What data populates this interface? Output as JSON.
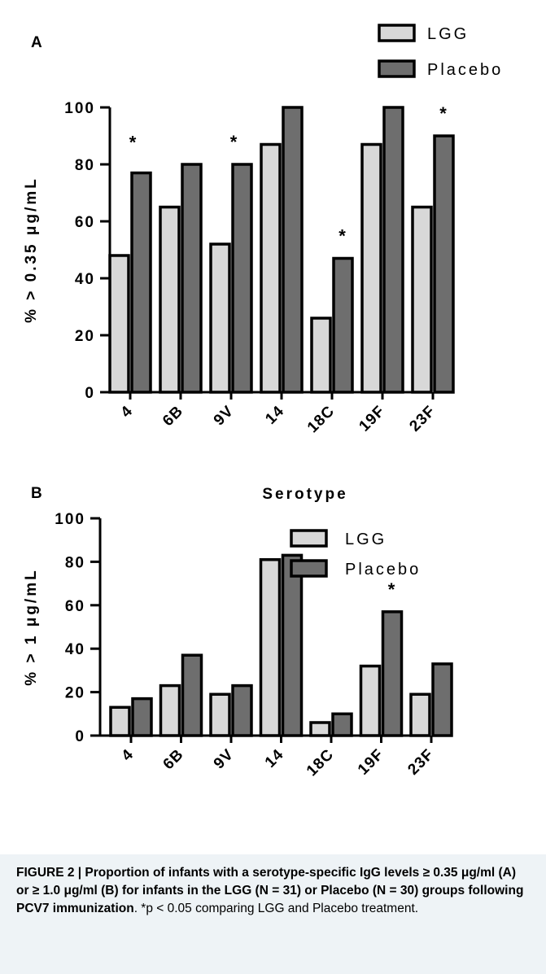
{
  "chart_data": [
    {
      "type": "bar",
      "panel_label": "A",
      "ylabel": "% > 0.35 μg/mL",
      "xlabel": "Serotype",
      "ylim": [
        0,
        100
      ],
      "yticks": [
        0,
        20,
        40,
        60,
        80,
        100
      ],
      "legend_position": "top-right",
      "categories": [
        "4",
        "6B",
        "9V",
        "14",
        "18C",
        "19F",
        "23F"
      ],
      "series": [
        {
          "name": "LGG",
          "color": "#d8d8d8",
          "values": [
            48,
            65,
            52,
            87,
            26,
            87,
            65
          ]
        },
        {
          "name": "Placebo",
          "color": "#6e6e6e",
          "values": [
            77,
            80,
            80,
            100,
            47,
            100,
            90
          ]
        }
      ],
      "significance": [
        "*",
        "",
        "*",
        "",
        "*",
        "",
        "*"
      ]
    },
    {
      "type": "bar",
      "panel_label": "B",
      "ylabel": "% > 1 μg/mL",
      "ylim": [
        0,
        100
      ],
      "yticks": [
        0,
        20,
        40,
        60,
        80,
        100
      ],
      "legend_position": "top-right",
      "categories": [
        "4",
        "6B",
        "9V",
        "14",
        "18C",
        "19F",
        "23F"
      ],
      "series": [
        {
          "name": "LGG",
          "color": "#d8d8d8",
          "values": [
            13,
            23,
            19,
            81,
            6,
            32,
            19
          ]
        },
        {
          "name": "Placebo",
          "color": "#6e6e6e",
          "values": [
            17,
            37,
            23,
            83,
            10,
            57,
            33
          ]
        }
      ],
      "significance": [
        "",
        "",
        "",
        "",
        "",
        "*",
        ""
      ]
    }
  ],
  "caption": {
    "title": "FIGURE 2 | Proportion of infants with a serotype-specific IgG levels ≥ 0.35 μg/ml (A) or ≥ 1.0 μg/ml (B) for infants in the LGG (N = 31) or Placebo (N = 30) groups following PCV7 immunization",
    "text": ". *p < 0.05 comparing LGG and Placebo treatment."
  }
}
